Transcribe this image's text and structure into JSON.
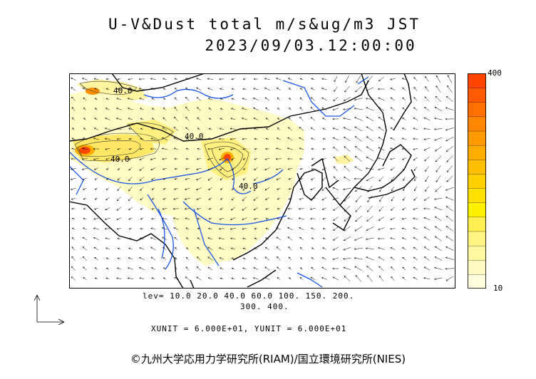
{
  "title_line1": "U-V&Dust total m/s&ug/m3 JST",
  "title_line2": "2023/09/03.12:00:00",
  "colorbar": {
    "max_label": "400",
    "min_label": "10",
    "colors": [
      "#fffde0",
      "#fffbc0",
      "#fff8a0",
      "#fff580",
      "#ffef50",
      "#fff200",
      "#ffe100",
      "#ffd000",
      "#ffbf00",
      "#ffac00",
      "#ff9900",
      "#ff8600",
      "#ff7000",
      "#ff5a00",
      "#ff4500"
    ]
  },
  "contour_labels": [
    "40.0",
    "40.0",
    "40.0",
    "40.0"
  ],
  "levels_line1": "lev= 10.0 20.0 40.0 60.0 100. 150. 200.",
  "levels_line2": "300. 400.",
  "units_line": "XUNIT = 6.000E+01, YUNIT = 6.000E+01",
  "copyright": "©九州大学応用力学研究所(RIAM)/国立環境研究所(NIES)",
  "colors": {
    "land_border": "#000000",
    "rivers": "#1a55e6",
    "frame": "#000000",
    "dust_light": "#fffbc0",
    "dust_mid": "#ffe760",
    "dust_high": "#ff5a00"
  }
}
